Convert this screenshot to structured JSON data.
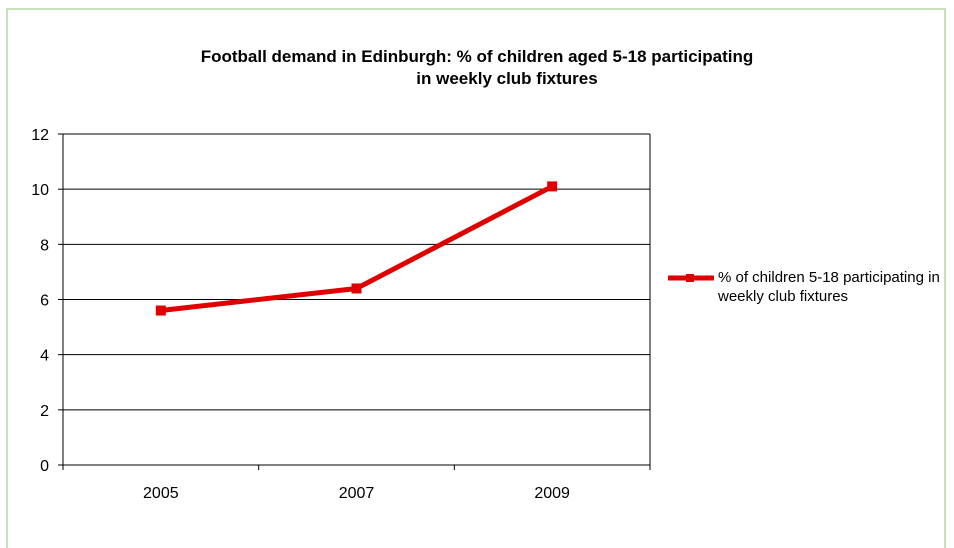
{
  "chart_data": {
    "type": "line",
    "title_line1": "Football demand in Edinburgh: % of children aged 5-18 participating",
    "title_line2": "in weekly club fixtures",
    "categories": [
      "2005",
      "2007",
      "2009"
    ],
    "series": [
      {
        "name": "% of children 5-18 participating in weekly club fixtures",
        "values": [
          5.6,
          6.4,
          10.1
        ],
        "color": "#e00000"
      }
    ],
    "ylim": [
      0,
      12
    ],
    "yticks": [
      "0",
      "2",
      "4",
      "6",
      "8",
      "10",
      "12"
    ],
    "grid": true,
    "legend_position": "right"
  }
}
